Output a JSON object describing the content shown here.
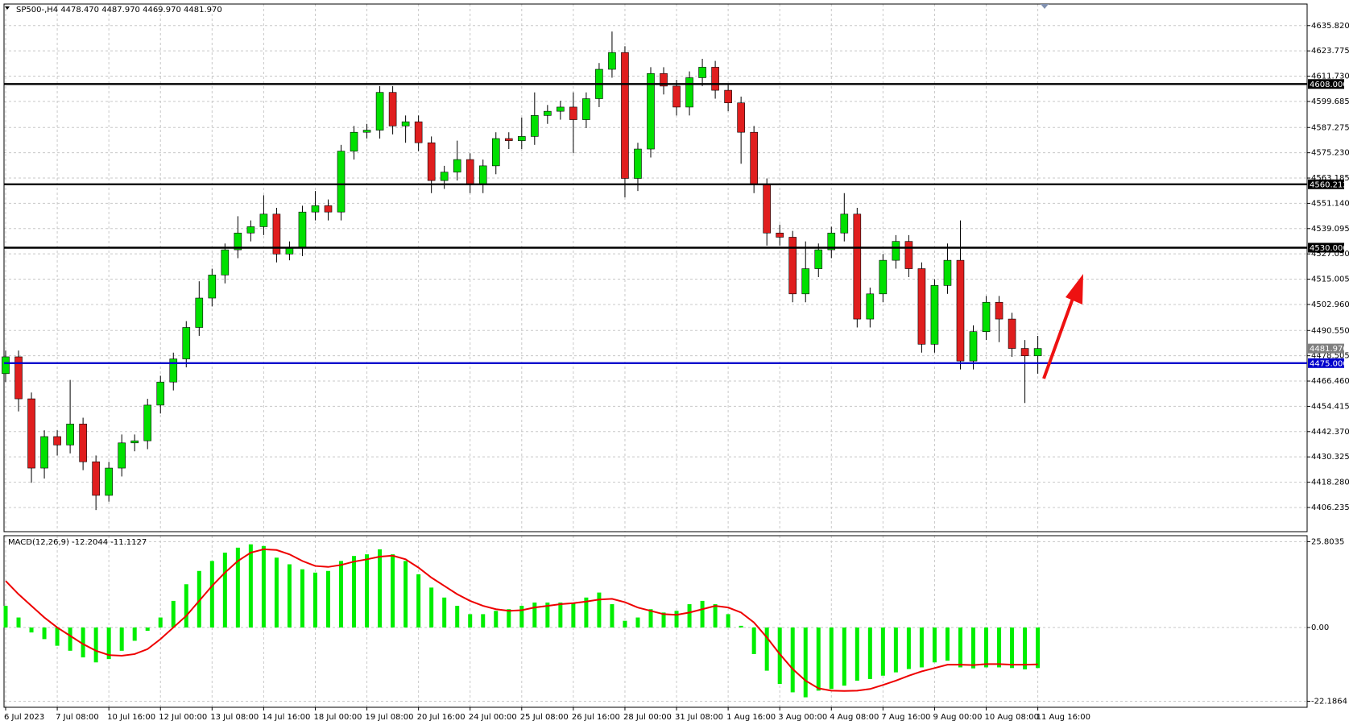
{
  "chart_data": [
    {
      "type": "candlestick",
      "title": "SP500-,H4  4478.470 4487.970 4469.970 4481.970",
      "categories": [
        "6 Jul 2023",
        null,
        null,
        null,
        "7 Jul 08:00",
        null,
        null,
        null,
        "10 Jul 16:00",
        null,
        null,
        null,
        "12 Jul 00:00",
        null,
        null,
        null,
        "13 Jul 08:00",
        null,
        null,
        null,
        "14 Jul 16:00",
        null,
        null,
        null,
        "18 Jul 00:00",
        null,
        null,
        null,
        "19 Jul 08:00",
        null,
        null,
        null,
        "20 Jul 16:00",
        null,
        null,
        null,
        "24 Jul 00:00",
        null,
        null,
        null,
        "25 Jul 08:00",
        null,
        null,
        null,
        "26 Jul 16:00",
        null,
        null,
        null,
        "28 Jul 00:00",
        null,
        null,
        null,
        "31 Jul 08:00",
        null,
        null,
        null,
        "1 Aug 16:00",
        null,
        null,
        null,
        "3 Aug 00:00",
        null,
        null,
        null,
        "4 Aug 08:00",
        null,
        null,
        null,
        "7 Aug 16:00",
        null,
        null,
        null,
        "9 Aug 00:00",
        null,
        null,
        null,
        "10 Aug 08:00",
        null,
        null,
        null,
        "11 Aug 16:00"
      ],
      "open": [
        4470,
        4478,
        4458,
        4425,
        4440,
        4436,
        4446,
        4428,
        4412,
        4425,
        4437,
        4438,
        4455,
        4466,
        4477,
        4492,
        4506,
        4517,
        4529,
        4537,
        4540,
        4546,
        4527,
        4530,
        4547,
        4550,
        4547,
        4576,
        4585,
        4586,
        4604,
        4588,
        4590,
        4580,
        4562,
        4566,
        4572,
        4560,
        4569,
        4582,
        4581,
        4583,
        4593,
        4595,
        4597,
        4591,
        4601,
        4615,
        4623,
        4563,
        4577,
        4613,
        4607,
        4597,
        4611,
        4616,
        4605,
        4599,
        4585,
        4560,
        4537,
        4535,
        4508,
        4520,
        4529,
        4537,
        4546,
        4496,
        4508,
        4524,
        4533,
        4520,
        4484,
        4512,
        4524,
        4476,
        4490,
        4504,
        4496,
        4482,
        4478.47
      ],
      "high": [
        4481,
        4481,
        4461,
        4443,
        4443,
        4467,
        4449,
        4431,
        4428,
        4441,
        4441,
        4458,
        4469,
        4480,
        4495,
        4514,
        4520,
        4532,
        4545,
        4543,
        4555,
        4549,
        4533,
        4550,
        4557,
        4553,
        4579,
        4588,
        4589,
        4607,
        4607,
        4593,
        4593,
        4583,
        4569,
        4581,
        4575,
        4572,
        4585,
        4585,
        4592,
        4604,
        4598,
        4600,
        4604,
        4604,
        4618,
        4633,
        4626,
        4580,
        4616,
        4616,
        4610,
        4614,
        4620,
        4619,
        4608,
        4602,
        4588,
        4563,
        4541,
        4538,
        4533,
        4532,
        4540,
        4556,
        4549,
        4511,
        4527,
        4536,
        4536,
        4523,
        4515,
        4532,
        4543,
        4493,
        4507,
        4507,
        4499,
        4486,
        4487.97
      ],
      "low": [
        4466,
        4452,
        4418,
        4420,
        4431,
        4432,
        4424,
        4405,
        4409,
        4421,
        4433,
        4434,
        4451,
        4462,
        4473,
        4488,
        4502,
        4513,
        4525,
        4533,
        4536,
        4523,
        4524,
        4526,
        4543,
        4543,
        4543,
        4572,
        4582,
        4582,
        4584,
        4580,
        4576,
        4556,
        4558,
        4562,
        4556,
        4556,
        4565,
        4577,
        4577,
        4579,
        4589,
        4591,
        4575,
        4587,
        4597,
        4611,
        4554,
        4557,
        4573,
        4603,
        4593,
        4593,
        4607,
        4601,
        4595,
        4570,
        4556,
        4531,
        4531,
        4504,
        4504,
        4516,
        4525,
        4533,
        4492,
        4492,
        4504,
        4520,
        4516,
        4480,
        4480,
        4508,
        4472,
        4472,
        4486,
        4485,
        4478,
        4456,
        4469.97
      ],
      "close": [
        4478,
        4458,
        4425,
        4440,
        4436,
        4446,
        4428,
        4412,
        4425,
        4437,
        4438,
        4455,
        4466,
        4477,
        4492,
        4506,
        4517,
        4529,
        4537,
        4540,
        4546,
        4527,
        4530,
        4547,
        4550,
        4547,
        4576,
        4585,
        4586,
        4604,
        4588,
        4590,
        4580,
        4562,
        4566,
        4572,
        4560,
        4569,
        4582,
        4581,
        4583,
        4593,
        4595,
        4597,
        4591,
        4601,
        4615,
        4623,
        4563,
        4577,
        4613,
        4607,
        4597,
        4611,
        4616,
        4605,
        4599,
        4585,
        4560,
        4537,
        4535,
        4508,
        4520,
        4529,
        4537,
        4546,
        4496,
        4508,
        4524,
        4533,
        4520,
        4484,
        4512,
        4524,
        4476,
        4490,
        4504,
        4496,
        4482,
        4478.47,
        4481.97
      ],
      "up_color": "#00e000",
      "down_color": "#e01e1e",
      "wick_color": "#000000",
      "ylim": [
        4394.7,
        4646.1
      ],
      "yticks": [
        {
          "value": 4635.82,
          "label": "4635.820"
        },
        4623.775,
        {
          "value": 4611.73,
          "label": "4611.730"
        },
        4599.685,
        4587.275,
        {
          "value": 4575.23,
          "label": "4575.230"
        },
        4563.185,
        {
          "value": 4551.14,
          "label": "4551.140"
        },
        4539.095,
        {
          "value": 4527.05,
          "label": "4527.050"
        },
        4515.005,
        {
          "value": 4502.96,
          "label": "4502.960"
        },
        {
          "value": 4490.55,
          "label": "4490.550"
        },
        4478.505,
        {
          "value": 4466.46,
          "label": "4466.460"
        },
        4454.415,
        {
          "value": 4442.37,
          "label": "4442.370"
        },
        4430.325,
        {
          "value": 4418.28,
          "label": "4418.280"
        },
        4406.235
      ],
      "levels": [
        {
          "value": 4608,
          "label": "4608.000",
          "color": "#000000"
        },
        {
          "value": 4560.212,
          "label": "4560.212",
          "color": "#000000"
        },
        {
          "value": 4530,
          "label": "4530.000",
          "color": "#000000"
        },
        {
          "value": 4475,
          "label": "4475.000",
          "color": "#0000cc"
        }
      ],
      "price_label": {
        "value": 4481.97,
        "label": "4481.970",
        "color": "#808080"
      },
      "grid": true
    },
    {
      "type": "macd",
      "title": "MACD(12,26,9) -12.2044 -11.1127",
      "values": [
        6.5,
        3,
        -1.5,
        -3.5,
        -5.5,
        -7,
        -9,
        -10.5,
        -9.5,
        -7,
        -4,
        -1,
        3,
        8,
        13,
        17,
        20,
        22.5,
        24,
        25,
        24.5,
        21,
        19,
        17.5,
        16.5,
        17,
        20,
        21.5,
        22,
        23.5,
        22,
        20,
        16,
        12,
        9,
        6.5,
        4,
        4,
        5,
        5.5,
        6.5,
        7.5,
        7.5,
        7.5,
        7.5,
        9,
        10.5,
        7,
        2,
        3,
        5.5,
        4.5,
        5,
        7,
        8,
        7,
        4,
        0.5,
        -8,
        -13,
        -17,
        -19.5,
        -21,
        -19,
        -18.5,
        -17.5,
        -16,
        -15.5,
        -14.5,
        -13.5,
        -12.5,
        -12,
        -10.5,
        -10,
        -12,
        -12.3,
        -12,
        -12,
        -12.2,
        -12.6,
        -12.2044
      ],
      "color": "#00ee00",
      "signal": {
        "values": [
          14,
          10,
          6.5,
          3,
          0,
          -2.5,
          -5,
          -7,
          -8.3,
          -8.5,
          -8,
          -6.5,
          -3.5,
          0,
          3.5,
          8,
          12.5,
          16.5,
          20,
          22.5,
          23.5,
          23.3,
          22,
          20,
          18.5,
          18.2,
          18.8,
          19.8,
          20.5,
          21.3,
          21.6,
          20.5,
          18,
          15,
          12.5,
          10,
          8,
          6.5,
          5.5,
          5,
          5.2,
          6,
          6.5,
          7,
          7.3,
          7.8,
          8.4,
          8.6,
          7.6,
          6,
          5,
          4,
          3.8,
          4.5,
          5.5,
          6.5,
          6,
          4.5,
          1.5,
          -3,
          -8,
          -12.5,
          -16,
          -18.3,
          -19,
          -19.1,
          -19,
          -18.5,
          -17.3,
          -16,
          -14.5,
          -13.2,
          -12.2,
          -11.2,
          -11.2,
          -11.3,
          -11,
          -11,
          -11.2,
          -11.2,
          -11.1127
        ],
        "color": "#ee0000"
      },
      "ylim": [
        -24,
        27.6
      ],
      "yticks": [
        25.8035,
        {
          "value": 0,
          "label": "0.00"
        },
        -22.1864
      ],
      "grid": true
    }
  ]
}
